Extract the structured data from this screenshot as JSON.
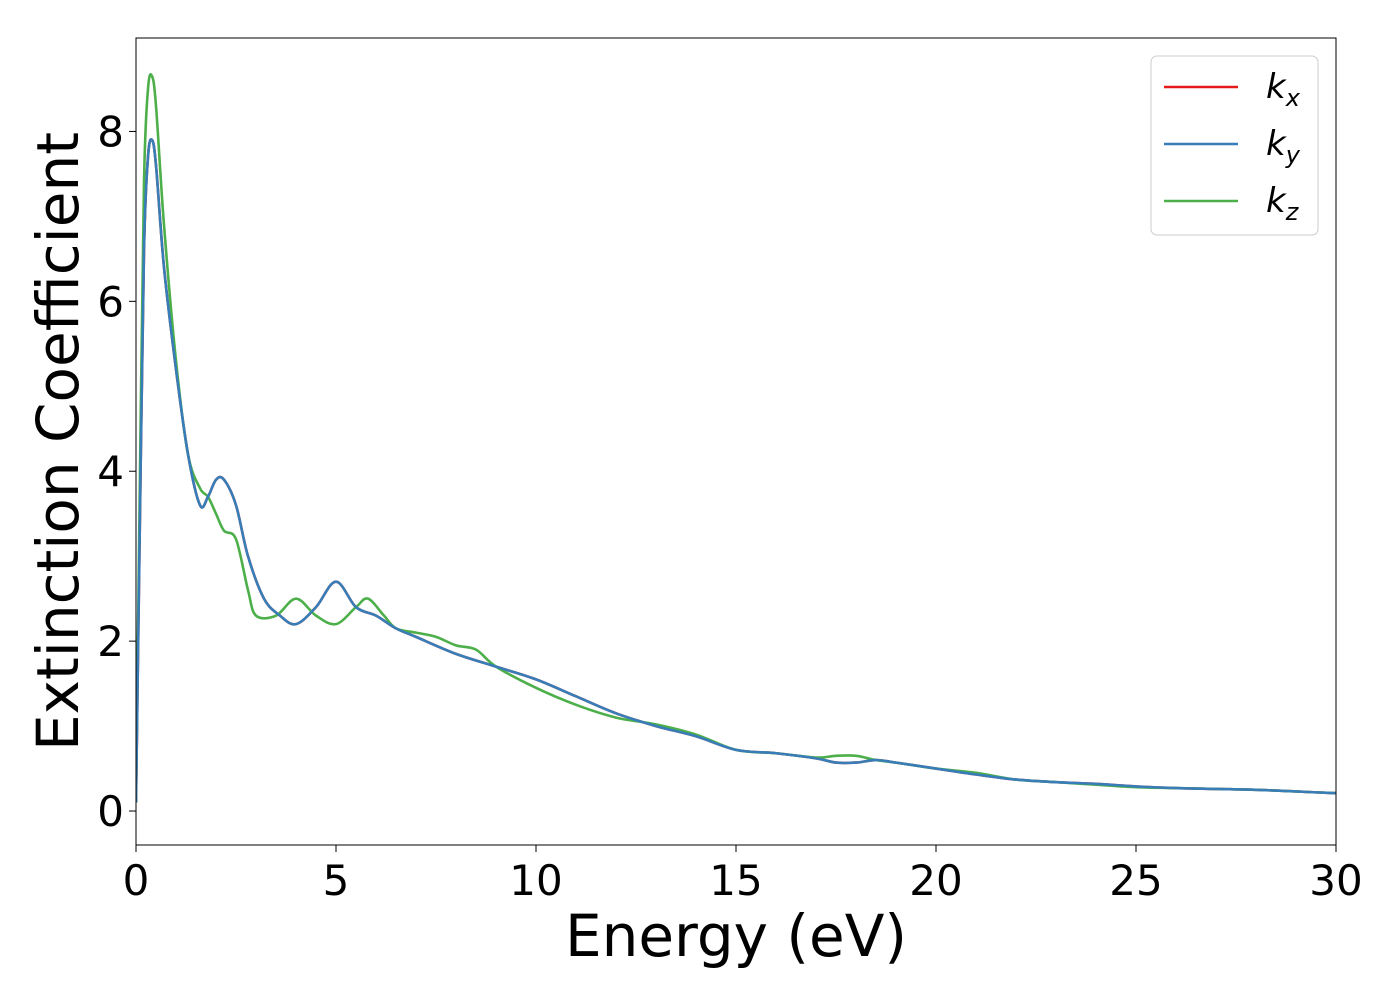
{
  "chart_data": {
    "type": "line",
    "title": "",
    "xlabel": "Energy (eV)",
    "ylabel": "Extinction Coefficient",
    "xlim": [
      0,
      30
    ],
    "ylim": [
      -0.4,
      9.1
    ],
    "xticks": [
      0,
      5,
      10,
      15,
      20,
      25,
      30
    ],
    "xtick_labels": [
      "0",
      "5",
      "10",
      "15",
      "20",
      "25",
      "30"
    ],
    "yticks": [
      0,
      2,
      4,
      6,
      8
    ],
    "ytick_labels": [
      "0",
      "2",
      "4",
      "6",
      "8"
    ],
    "grid": false,
    "legend_position": "top-right",
    "series": [
      {
        "name": "k",
        "subscript": "x",
        "color": "#e41a1c",
        "x": [
          0,
          0.1,
          0.2,
          0.3,
          0.4,
          0.5,
          0.7,
          1.0,
          1.3,
          1.6,
          1.8,
          2.0,
          2.2,
          2.5,
          2.8,
          3.2,
          3.6,
          4.0,
          4.5,
          5.0,
          5.5,
          6.0,
          6.5,
          7.0,
          8.0,
          9.0,
          10.0,
          11.0,
          12.0,
          13.0,
          14.0,
          15.0,
          16.0,
          17.0,
          17.5,
          18.0,
          18.5,
          19.0,
          20.0,
          21.0,
          22.0,
          23.0,
          24.0,
          25.0,
          26.0,
          27.0,
          28.0,
          29.0,
          30.0
        ],
        "values": [
          0.1,
          3.5,
          6.6,
          7.7,
          7.9,
          7.6,
          6.4,
          5.2,
          4.2,
          3.6,
          3.7,
          3.9,
          3.9,
          3.6,
          3.0,
          2.5,
          2.3,
          2.2,
          2.4,
          2.7,
          2.4,
          2.3,
          2.15,
          2.05,
          1.85,
          1.7,
          1.55,
          1.35,
          1.15,
          1.0,
          0.88,
          0.72,
          0.68,
          0.62,
          0.57,
          0.57,
          0.6,
          0.57,
          0.5,
          0.43,
          0.37,
          0.34,
          0.32,
          0.29,
          0.27,
          0.26,
          0.25,
          0.23,
          0.21
        ]
      },
      {
        "name": "k",
        "subscript": "y",
        "color": "#377eb8",
        "x": [
          0,
          0.1,
          0.2,
          0.3,
          0.4,
          0.5,
          0.7,
          1.0,
          1.3,
          1.6,
          1.8,
          2.0,
          2.2,
          2.5,
          2.8,
          3.2,
          3.6,
          4.0,
          4.5,
          5.0,
          5.5,
          6.0,
          6.5,
          7.0,
          8.0,
          9.0,
          10.0,
          11.0,
          12.0,
          13.0,
          14.0,
          15.0,
          16.0,
          17.0,
          17.5,
          18.0,
          18.5,
          19.0,
          20.0,
          21.0,
          22.0,
          23.0,
          24.0,
          25.0,
          26.0,
          27.0,
          28.0,
          29.0,
          30.0
        ],
        "values": [
          0.1,
          3.5,
          6.6,
          7.7,
          7.9,
          7.6,
          6.4,
          5.2,
          4.2,
          3.6,
          3.7,
          3.9,
          3.9,
          3.6,
          3.0,
          2.5,
          2.3,
          2.2,
          2.4,
          2.7,
          2.4,
          2.3,
          2.15,
          2.05,
          1.85,
          1.7,
          1.55,
          1.35,
          1.15,
          1.0,
          0.88,
          0.72,
          0.68,
          0.62,
          0.57,
          0.57,
          0.6,
          0.57,
          0.5,
          0.43,
          0.37,
          0.34,
          0.32,
          0.29,
          0.27,
          0.26,
          0.25,
          0.23,
          0.21
        ]
      },
      {
        "name": "k",
        "subscript": "z",
        "color": "#4daf4a",
        "x": [
          0,
          0.1,
          0.2,
          0.3,
          0.4,
          0.5,
          0.7,
          1.0,
          1.3,
          1.6,
          1.8,
          2.0,
          2.2,
          2.5,
          2.8,
          3.0,
          3.5,
          4.0,
          4.5,
          5.0,
          5.5,
          5.8,
          6.2,
          6.5,
          7.0,
          7.5,
          8.0,
          8.5,
          9.0,
          10.0,
          11.0,
          12.0,
          13.0,
          14.0,
          15.0,
          16.0,
          17.0,
          17.5,
          18.0,
          18.5,
          19.0,
          20.0,
          21.0,
          22.0,
          23.0,
          24.0,
          25.0,
          26.0,
          27.0,
          28.0,
          29.0,
          30.0
        ],
        "values": [
          0.1,
          4.0,
          7.4,
          8.5,
          8.65,
          8.3,
          6.9,
          5.3,
          4.2,
          3.8,
          3.7,
          3.5,
          3.3,
          3.2,
          2.6,
          2.3,
          2.3,
          2.5,
          2.3,
          2.2,
          2.4,
          2.5,
          2.3,
          2.15,
          2.1,
          2.05,
          1.95,
          1.9,
          1.7,
          1.45,
          1.25,
          1.1,
          1.02,
          0.9,
          0.72,
          0.68,
          0.63,
          0.65,
          0.65,
          0.6,
          0.57,
          0.5,
          0.45,
          0.37,
          0.34,
          0.31,
          0.28,
          0.27,
          0.26,
          0.25,
          0.23,
          0.21
        ]
      }
    ]
  }
}
